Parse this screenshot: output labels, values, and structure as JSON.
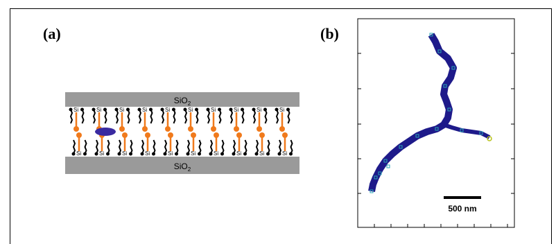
{
  "panels": {
    "a": {
      "label": "(a)",
      "top_layer": {
        "name": "SiO",
        "subscript": "2"
      },
      "bottom_layer": {
        "name": "SiO",
        "subscript": "2"
      },
      "atom_label": "Si",
      "colors": {
        "glass": "#9a9a9a",
        "alkyl": "#000000",
        "probe_chain": "#f07a1c",
        "molecule": "#3a2aa0"
      }
    },
    "b": {
      "label": "(b)",
      "scale_bar_label": "500 nm",
      "colors": {
        "trajectory": "#1e1a8a",
        "markers": "#2aa6b6",
        "endpoint": "#b8c21a"
      }
    }
  }
}
